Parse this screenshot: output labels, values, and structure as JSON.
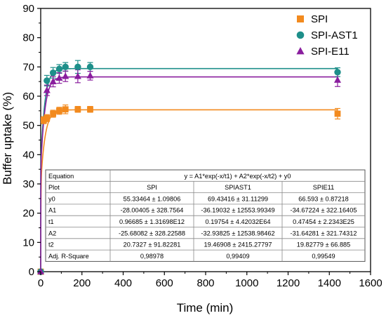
{
  "chart_data": {
    "type": "scatter",
    "xlabel": "Time (min)",
    "ylabel": "Buffer uptake (%)",
    "xlim": [
      0,
      1600
    ],
    "ylim": [
      0,
      90
    ],
    "xticks": [
      0,
      200,
      400,
      600,
      800,
      1000,
      1200,
      1400,
      1600
    ],
    "yticks": [
      0,
      10,
      20,
      30,
      40,
      50,
      60,
      70,
      80,
      90
    ],
    "legend_position": "top-right",
    "series": [
      {
        "name": "SPI",
        "color": "#f28a1e",
        "marker": "square",
        "x": [
          0,
          15,
          30,
          60,
          90,
          120,
          180,
          240,
          1440
        ],
        "y": [
          0,
          51.8,
          52.5,
          54.0,
          55.0,
          55.5,
          55.5,
          55.5,
          54.0
        ],
        "err": [
          0,
          1.2,
          1.2,
          1.2,
          1.2,
          1.5,
          1.0,
          1.0,
          1.8
        ],
        "fit": {
          "y0": 55.33464,
          "A1": -28.00405,
          "t1": 0.96685,
          "A2": -25.68082,
          "t2": 20.7327
        }
      },
      {
        "name": "SPI-AST1",
        "color": "#1e8f8a",
        "marker": "circle",
        "x": [
          0,
          30,
          60,
          90,
          120,
          180,
          240,
          1440
        ],
        "y": [
          0,
          65.3,
          68.0,
          69.3,
          70.0,
          70.0,
          70.0,
          68.2
        ],
        "err": [
          0,
          1.8,
          1.8,
          1.5,
          1.5,
          2.2,
          1.5,
          1.5
        ],
        "fit": {
          "y0": 69.43416,
          "A1": -36.19032,
          "t1": 0.19754,
          "A2": -32.93825,
          "t2": 19.46908
        }
      },
      {
        "name": "SPI-E11",
        "color": "#8a1e9e",
        "marker": "triangle",
        "x": [
          0,
          30,
          60,
          90,
          120,
          180,
          240,
          1440
        ],
        "y": [
          0,
          62.0,
          65.0,
          66.2,
          66.8,
          66.8,
          67.0,
          65.5
        ],
        "err": [
          0,
          1.8,
          1.8,
          1.8,
          1.8,
          2.2,
          1.5,
          2.2
        ],
        "fit": {
          "y0": 66.593,
          "A1": -34.67224,
          "t1": 0.47454,
          "A2": -31.64281,
          "t2": 19.82779
        }
      }
    ],
    "fit_table": {
      "header_label": "Equation",
      "equation": "y = A1*exp(-x/t1) + A2*exp(-x/t2) + y0",
      "rows": [
        [
          "Plot",
          "SPI",
          "SPIAST1",
          "SPIE11"
        ],
        [
          "y0",
          "55.33464 ± 1.09806",
          "69.43416 ± 31.11299",
          "66.593 ± 0.87218"
        ],
        [
          "A1",
          "-28.00405 ± 328.7564",
          "-36.19032 ± 12553.99349",
          "-34.67224 ± 322.16405"
        ],
        [
          "t1",
          "0.96685 ± 1.31698E12",
          "0.19754 ± 4.42032E64",
          "0.47454 ± 2.2343E25"
        ],
        [
          "A2",
          "-25.68082 ± 328.22588",
          "-32.93825 ± 12538.98462",
          "-31.64281 ± 321.74312"
        ],
        [
          "t2",
          "20.7327 ± 91.82281",
          "19.46908 ± 2415.27797",
          "19.82779 ± 66.885"
        ],
        [
          "Adj. R-Square",
          "0,98978",
          "0,99409",
          "0,99549"
        ]
      ]
    }
  }
}
